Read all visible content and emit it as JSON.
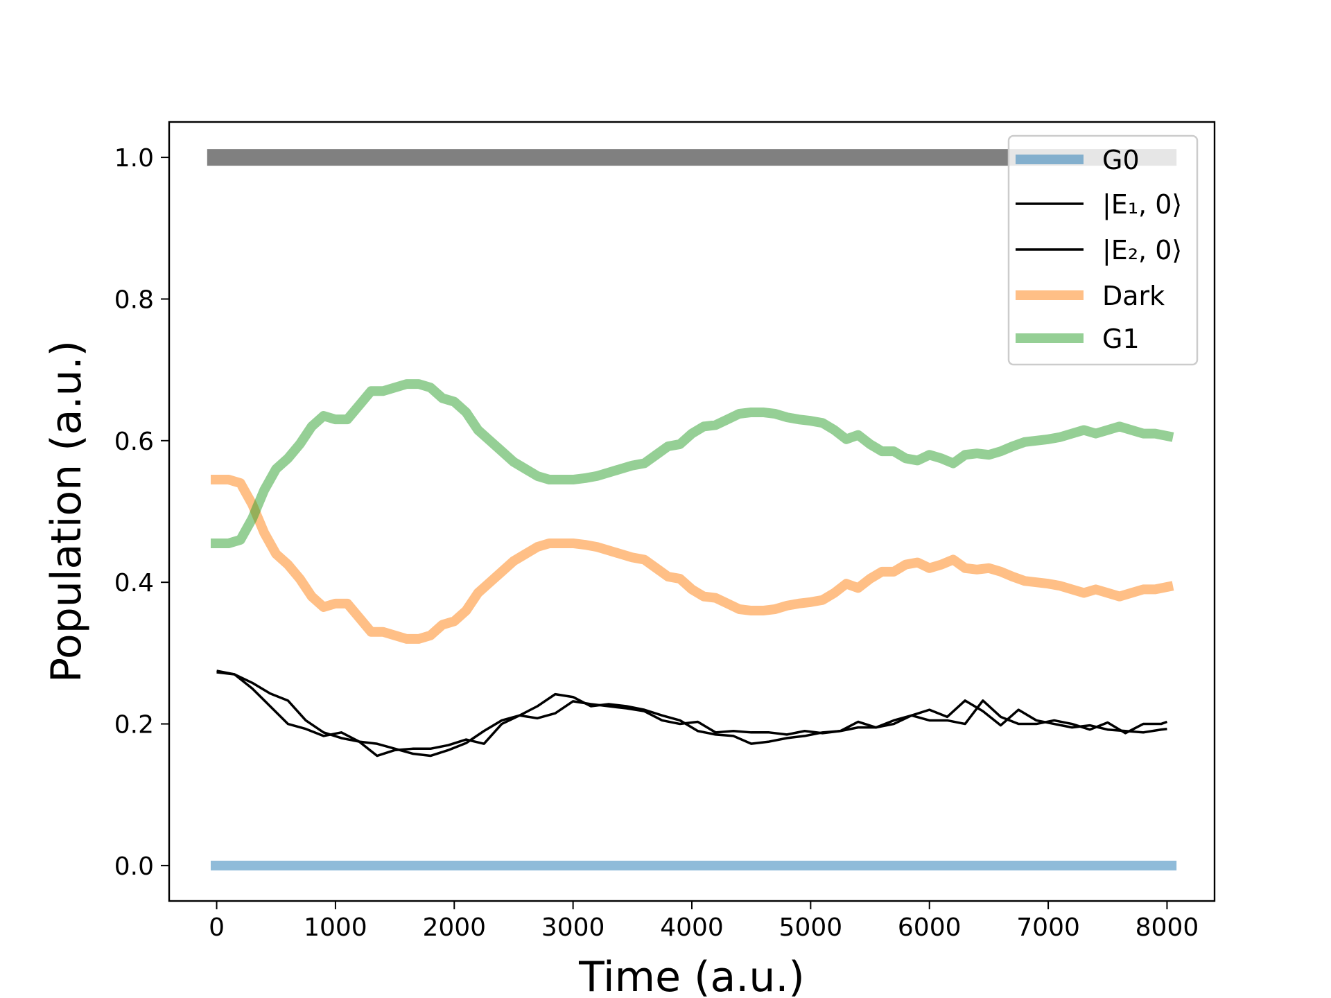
{
  "chart_data": {
    "type": "line",
    "title": "",
    "xlabel": "Time (a.u.)",
    "ylabel": "Population (a.u.)",
    "xlim": [
      -400,
      8400
    ],
    "ylim": [
      -0.05,
      1.05
    ],
    "xticks": [
      0,
      1000,
      2000,
      3000,
      4000,
      5000,
      6000,
      7000,
      8000
    ],
    "xtick_labels": [
      "0",
      "1000",
      "2000",
      "3000",
      "4000",
      "5000",
      "6000",
      "7000",
      "8000"
    ],
    "yticks": [
      0.0,
      0.2,
      0.4,
      0.6,
      0.8,
      1.0
    ],
    "ytick_labels": [
      "0.0",
      "0.2",
      "0.4",
      "0.6",
      "0.8",
      "1.0"
    ],
    "grid": false,
    "legend_position": "top-right",
    "reference_line": {
      "x": [
        -80,
        8080
      ],
      "y": [
        1.0,
        1.0
      ],
      "color": "#808080"
    },
    "series": [
      {
        "name": "G0",
        "legend_label": "G0",
        "color": "#1f77b4",
        "opacity": 0.5,
        "width": 14,
        "x": [
          -50,
          8080
        ],
        "y": [
          0.0,
          0.0
        ]
      },
      {
        "name": "E1",
        "legend_label": "|E₁, 0⟩",
        "color": "#000000",
        "opacity": 1,
        "width": 3.5,
        "x": [
          0,
          150,
          300,
          450,
          600,
          750,
          900,
          1050,
          1200,
          1350,
          1500,
          1650,
          1800,
          1950,
          2100,
          2250,
          2400,
          2550,
          2700,
          2850,
          3000,
          3150,
          3300,
          3450,
          3600,
          3750,
          3900,
          4050,
          4200,
          4350,
          4500,
          4650,
          4800,
          4950,
          5100,
          5250,
          5400,
          5550,
          5700,
          5850,
          6000,
          6150,
          6300,
          6450,
          6600,
          6750,
          6900,
          7050,
          7200,
          7350,
          7500,
          7650,
          7800,
          7950,
          8000
        ],
        "y": [
          0.273,
          0.27,
          0.258,
          0.243,
          0.233,
          0.205,
          0.188,
          0.18,
          0.175,
          0.172,
          0.165,
          0.158,
          0.155,
          0.163,
          0.173,
          0.19,
          0.205,
          0.212,
          0.225,
          0.242,
          0.238,
          0.225,
          0.228,
          0.225,
          0.22,
          0.212,
          0.205,
          0.19,
          0.185,
          0.183,
          0.172,
          0.175,
          0.18,
          0.183,
          0.188,
          0.19,
          0.203,
          0.195,
          0.2,
          0.212,
          0.22,
          0.21,
          0.233,
          0.218,
          0.198,
          0.22,
          0.205,
          0.2,
          0.195,
          0.198,
          0.192,
          0.19,
          0.188,
          0.192,
          0.193
        ]
      },
      {
        "name": "E2",
        "legend_label": "|E₂, 0⟩",
        "color": "#000000",
        "opacity": 1,
        "width": 3.5,
        "x": [
          0,
          150,
          300,
          450,
          600,
          750,
          900,
          1050,
          1200,
          1350,
          1500,
          1650,
          1800,
          1950,
          2100,
          2250,
          2400,
          2550,
          2700,
          2850,
          3000,
          3150,
          3300,
          3450,
          3600,
          3750,
          3900,
          4050,
          4200,
          4350,
          4500,
          4650,
          4800,
          4950,
          5100,
          5250,
          5400,
          5550,
          5700,
          5850,
          6000,
          6150,
          6300,
          6450,
          6600,
          6750,
          6900,
          7050,
          7200,
          7350,
          7500,
          7650,
          7800,
          7950,
          8000
        ],
        "y": [
          0.275,
          0.27,
          0.25,
          0.225,
          0.2,
          0.193,
          0.183,
          0.188,
          0.175,
          0.155,
          0.163,
          0.165,
          0.165,
          0.17,
          0.178,
          0.172,
          0.2,
          0.212,
          0.208,
          0.215,
          0.232,
          0.228,
          0.225,
          0.222,
          0.218,
          0.205,
          0.2,
          0.203,
          0.188,
          0.19,
          0.188,
          0.188,
          0.185,
          0.19,
          0.187,
          0.19,
          0.195,
          0.195,
          0.205,
          0.212,
          0.205,
          0.205,
          0.2,
          0.233,
          0.21,
          0.2,
          0.2,
          0.205,
          0.2,
          0.192,
          0.202,
          0.187,
          0.2,
          0.2,
          0.203
        ]
      },
      {
        "name": "Dark",
        "legend_label": "Dark",
        "color": "#ff7f0e",
        "opacity": 0.5,
        "width": 14,
        "x": [
          -50,
          100,
          200,
          300,
          400,
          500,
          600,
          700,
          800,
          900,
          1000,
          1100,
          1200,
          1300,
          1400,
          1500,
          1600,
          1700,
          1800,
          1900,
          2000,
          2100,
          2200,
          2300,
          2400,
          2500,
          2600,
          2700,
          2800,
          2900,
          3000,
          3100,
          3200,
          3300,
          3400,
          3500,
          3600,
          3700,
          3800,
          3900,
          4000,
          4100,
          4200,
          4300,
          4400,
          4500,
          4600,
          4700,
          4800,
          4900,
          5000,
          5100,
          5200,
          5300,
          5400,
          5500,
          5600,
          5700,
          5800,
          5900,
          6000,
          6100,
          6200,
          6300,
          6400,
          6500,
          6600,
          6700,
          6800,
          6900,
          7000,
          7100,
          7200,
          7300,
          7400,
          7500,
          7600,
          7700,
          7800,
          7900,
          8050
        ],
        "y": [
          0.545,
          0.545,
          0.54,
          0.51,
          0.47,
          0.44,
          0.425,
          0.405,
          0.38,
          0.365,
          0.37,
          0.37,
          0.35,
          0.33,
          0.33,
          0.325,
          0.32,
          0.32,
          0.325,
          0.34,
          0.345,
          0.36,
          0.385,
          0.4,
          0.415,
          0.43,
          0.44,
          0.45,
          0.455,
          0.455,
          0.455,
          0.453,
          0.45,
          0.445,
          0.44,
          0.435,
          0.432,
          0.42,
          0.408,
          0.405,
          0.39,
          0.38,
          0.378,
          0.37,
          0.362,
          0.36,
          0.36,
          0.362,
          0.367,
          0.37,
          0.372,
          0.375,
          0.385,
          0.398,
          0.392,
          0.405,
          0.415,
          0.415,
          0.425,
          0.428,
          0.42,
          0.425,
          0.432,
          0.42,
          0.418,
          0.42,
          0.415,
          0.408,
          0.402,
          0.4,
          0.398,
          0.395,
          0.39,
          0.385,
          0.39,
          0.385,
          0.38,
          0.385,
          0.39,
          0.39,
          0.395
        ]
      },
      {
        "name": "G1",
        "legend_label": "G1",
        "color": "#2ca02c",
        "opacity": 0.5,
        "width": 14,
        "x": [
          -50,
          100,
          200,
          300,
          400,
          500,
          600,
          700,
          800,
          900,
          1000,
          1100,
          1200,
          1300,
          1400,
          1500,
          1600,
          1700,
          1800,
          1900,
          2000,
          2100,
          2200,
          2300,
          2400,
          2500,
          2600,
          2700,
          2800,
          2900,
          3000,
          3100,
          3200,
          3300,
          3400,
          3500,
          3600,
          3700,
          3800,
          3900,
          4000,
          4100,
          4200,
          4300,
          4400,
          4500,
          4600,
          4700,
          4800,
          4900,
          5000,
          5100,
          5200,
          5300,
          5400,
          5500,
          5600,
          5700,
          5800,
          5900,
          6000,
          6100,
          6200,
          6300,
          6400,
          6500,
          6600,
          6700,
          6800,
          6900,
          7000,
          7100,
          7200,
          7300,
          7400,
          7500,
          7600,
          7700,
          7800,
          7900,
          8050
        ],
        "y": [
          0.455,
          0.455,
          0.46,
          0.49,
          0.53,
          0.56,
          0.575,
          0.595,
          0.62,
          0.635,
          0.63,
          0.63,
          0.65,
          0.67,
          0.67,
          0.675,
          0.68,
          0.68,
          0.675,
          0.66,
          0.655,
          0.64,
          0.615,
          0.6,
          0.585,
          0.57,
          0.56,
          0.55,
          0.545,
          0.545,
          0.545,
          0.547,
          0.55,
          0.555,
          0.56,
          0.565,
          0.568,
          0.58,
          0.592,
          0.595,
          0.61,
          0.62,
          0.622,
          0.63,
          0.638,
          0.64,
          0.64,
          0.638,
          0.633,
          0.63,
          0.628,
          0.625,
          0.615,
          0.602,
          0.608,
          0.595,
          0.585,
          0.585,
          0.575,
          0.572,
          0.58,
          0.575,
          0.568,
          0.58,
          0.582,
          0.58,
          0.585,
          0.592,
          0.598,
          0.6,
          0.602,
          0.605,
          0.61,
          0.615,
          0.61,
          0.615,
          0.62,
          0.615,
          0.61,
          0.61,
          0.605
        ]
      }
    ]
  }
}
